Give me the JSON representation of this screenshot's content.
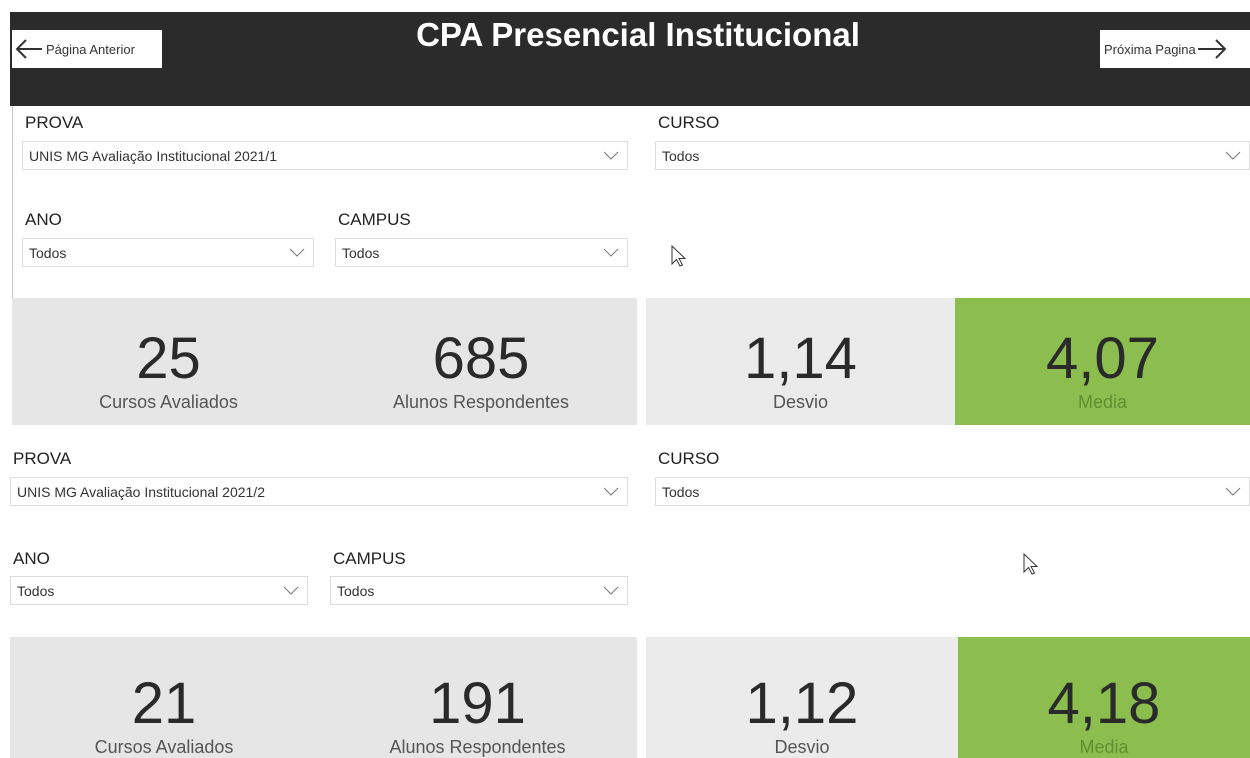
{
  "header": {
    "title": "CPA Presencial Institucional",
    "back_button": "Página Anterior",
    "next_button": "Próxima Pagina"
  },
  "sections": [
    {
      "filters": [
        {
          "label": "PROVA",
          "value": "UNIS MG Avaliação Institucional 2021/1"
        },
        {
          "label": "CURSO",
          "value": "Todos"
        },
        {
          "label": "ANO",
          "value": "Todos"
        },
        {
          "label": "CAMPUS",
          "value": "Todos"
        }
      ],
      "kpis": [
        {
          "value": 25,
          "label": "Cursos Avaliados"
        },
        {
          "value": 685,
          "label": "Alunos Respondentes"
        },
        {
          "value": "1,14",
          "label": "Desvio"
        },
        {
          "value": "4,07",
          "label": "Media"
        }
      ]
    },
    {
      "filters": [
        {
          "label": "PROVA",
          "value": "UNIS MG Avaliação Institucional 2021/2"
        },
        {
          "label": "CURSO",
          "value": "Todos"
        },
        {
          "label": "ANO",
          "value": "Todos"
        },
        {
          "label": "CAMPUS",
          "value": "Todos"
        }
      ],
      "kpis": [
        {
          "value": 21,
          "label": "Cursos Avaliados"
        },
        {
          "value": 191,
          "label": "Alunos Respondentes"
        },
        {
          "value": "1,12",
          "label": "Desvio"
        },
        {
          "value": "4,18",
          "label": "Media"
        }
      ]
    }
  ]
}
